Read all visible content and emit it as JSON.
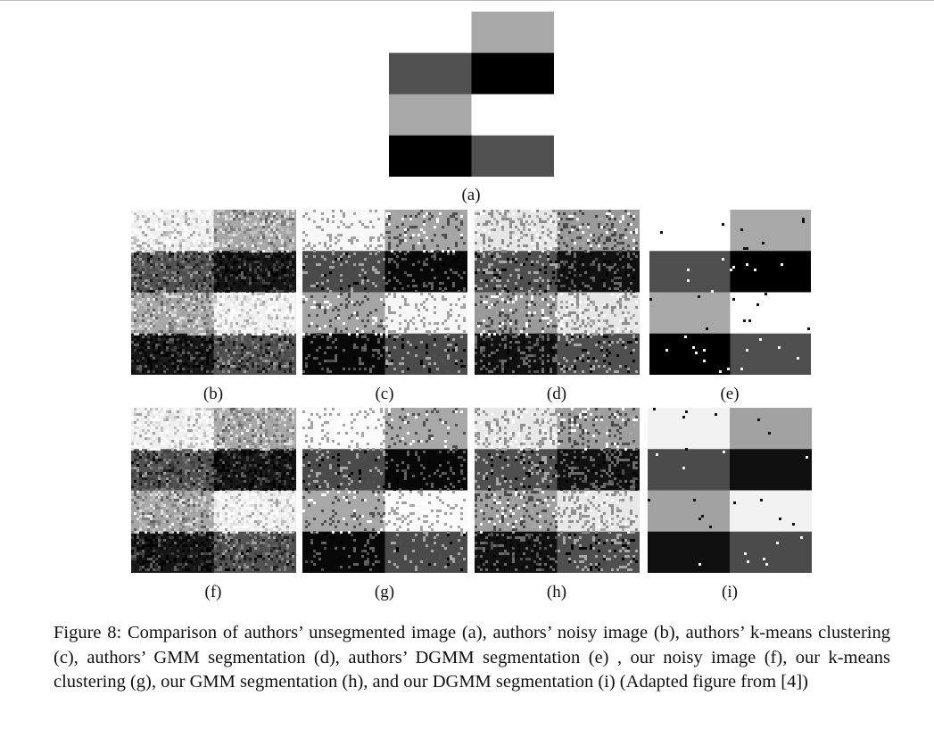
{
  "figure": {
    "panels": [
      {
        "id": "a",
        "label": "(a)",
        "kind": "clean",
        "cells": [
          "#ffffff",
          "#a8a8a8",
          "#515151",
          "#000000",
          "#a8a8a8",
          "#ffffff",
          "#000000",
          "#515151"
        ]
      },
      {
        "id": "b",
        "label": "(b)",
        "kind": "noisy",
        "noise": 0.55,
        "cells": [
          "#f0f0f0",
          "#a8a8a8",
          "#515151",
          "#151515",
          "#a8a8a8",
          "#f0f0f0",
          "#151515",
          "#515151"
        ]
      },
      {
        "id": "c",
        "label": "(c)",
        "kind": "cluster",
        "noise": 0.22,
        "cells": [
          "#f7f7f7",
          "#a5a5a5",
          "#4a4a4a",
          "#080808",
          "#a5a5a5",
          "#f7f7f7",
          "#080808",
          "#4a4a4a"
        ]
      },
      {
        "id": "d",
        "label": "(d)",
        "kind": "cluster",
        "noise": 0.3,
        "cells": [
          "#e6e6e6",
          "#9a9a9a",
          "#4f4f4f",
          "#111111",
          "#9a9a9a",
          "#e6e6e6",
          "#111111",
          "#4f4f4f"
        ]
      },
      {
        "id": "e",
        "label": "(e)",
        "kind": "clean",
        "speckle": 0.012,
        "cells": [
          "#ffffff",
          "#a8a8a8",
          "#4e4e4e",
          "#000000",
          "#a8a8a8",
          "#ffffff",
          "#000000",
          "#4e4e4e"
        ]
      },
      {
        "id": "f",
        "label": "(f)",
        "kind": "noisy",
        "noise": 0.55,
        "cells": [
          "#f0f0f0",
          "#a8a8a8",
          "#515151",
          "#151515",
          "#a8a8a8",
          "#f0f0f0",
          "#151515",
          "#515151"
        ]
      },
      {
        "id": "g",
        "label": "(g)",
        "kind": "cluster",
        "noise": 0.18,
        "cells": [
          "#fbfbfb",
          "#a8a8a8",
          "#4a4a4a",
          "#080808",
          "#a8a8a8",
          "#fbfbfb",
          "#080808",
          "#4a4a4a"
        ]
      },
      {
        "id": "h",
        "label": "(h)",
        "kind": "cluster",
        "noise": 0.3,
        "cells": [
          "#e8e8e8",
          "#9e9e9e",
          "#4f4f4f",
          "#111111",
          "#9e9e9e",
          "#e8e8e8",
          "#111111",
          "#4f4f4f"
        ]
      },
      {
        "id": "i",
        "label": "(i)",
        "kind": "clean",
        "speckle": 0.01,
        "cells": [
          "#f2f2f2",
          "#a2a2a2",
          "#4b4b4b",
          "#0f0f0f",
          "#a2a2a2",
          "#f2f2f2",
          "#0f0f0f",
          "#4b4b4b"
        ]
      }
    ]
  },
  "caption": "Figure 8: Comparison of authors’ unsegmented image (a), authors’ noisy image (b), authors’ k-means clustering (c), authors’ GMM segmentation (d), authors’ DGMM segmentation (e) , our noisy image (f), our k-means clustering (g), our GMM segmentation (h), and our DGMM segmentation (i) (Adapted figure from [4])"
}
